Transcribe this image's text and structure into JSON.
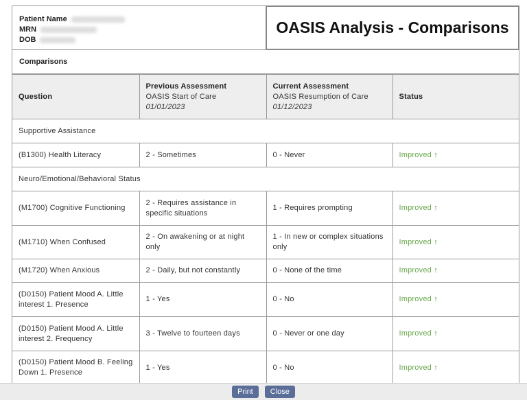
{
  "patient": {
    "name_label": "Patient Name",
    "mrn_label": "MRN",
    "dob_label": "DOB"
  },
  "title": "OASIS Analysis - Comparisons",
  "section_title": "Comparisons",
  "columns": {
    "question": "Question",
    "previous": "Previous Assessment",
    "previous_sub": "OASIS Start of Care",
    "previous_date": "01/01/2023",
    "current": "Current Assessment",
    "current_sub": "OASIS Resumption of Care",
    "current_date": "01/12/2023",
    "status": "Status"
  },
  "rows": [
    {
      "type": "section",
      "label": "Supportive Assistance"
    },
    {
      "type": "item",
      "question": "(B1300) Health Literacy",
      "previous": "2 - Sometimes",
      "current": "0 - Never",
      "status": "Improved"
    },
    {
      "type": "section",
      "label": "Neuro/Emotional/Behavioral Status"
    },
    {
      "type": "item",
      "question": "(M1700) Cognitive Functioning",
      "previous": "2 - Requires assistance in specific situations",
      "current": "1 - Requires prompting",
      "status": "Improved"
    },
    {
      "type": "item",
      "question": "(M1710) When Confused",
      "previous": "2 - On awakening or at night only",
      "current": "1 - In new or complex situations only",
      "status": "Improved"
    },
    {
      "type": "item",
      "question": "(M1720) When Anxious",
      "previous": "2 - Daily, but not constantly",
      "current": "0 - None of the time",
      "status": "Improved"
    },
    {
      "type": "item",
      "question": "(D0150) Patient Mood A. Little interest 1. Presence",
      "previous": "1 - Yes",
      "current": "0 - No",
      "status": "Improved"
    },
    {
      "type": "item",
      "question": "(D0150) Patient Mood A. Little interest 2. Frequency",
      "previous": "3 - Twelve to fourteen days",
      "current": "0 - Never or one day",
      "status": "Improved"
    },
    {
      "type": "item",
      "question": "(D0150) Patient Mood B. Feeling Down 1. Presence",
      "previous": "1 - Yes",
      "current": "0 - No",
      "status": "Improved"
    }
  ],
  "status_icon": "arrow-up-icon",
  "colors": {
    "improved": "#6aa84f",
    "button": "#5a6e97"
  },
  "buttons": {
    "print": "Print",
    "close": "Close"
  }
}
